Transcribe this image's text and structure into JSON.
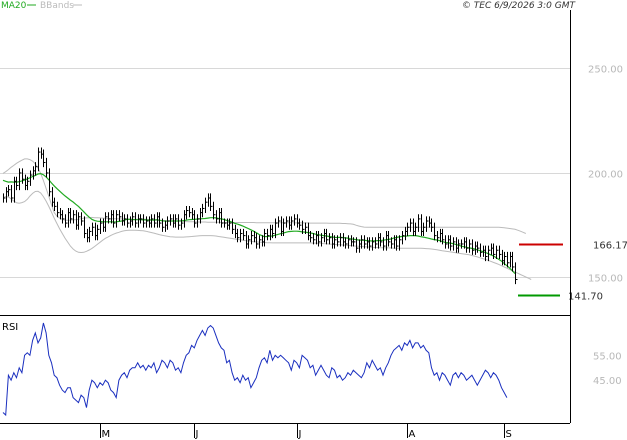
{
  "header": {
    "legend": [
      {
        "label": "MA20",
        "color": "#22aa22"
      },
      {
        "label": "BBands",
        "color": "#bbbbbb"
      }
    ],
    "copyright": "© TEC 6/9/2026 3:0 GMT"
  },
  "chart_data": [
    {
      "type": "line",
      "panel": "price",
      "y_ticks": [
        {
          "label": "250.00",
          "value": 250
        },
        {
          "label": "200.00",
          "value": 200
        },
        {
          "label": "150.00",
          "value": 150
        }
      ],
      "ylim": [
        132,
        278
      ],
      "x_ticks": [
        {
          "label": "M",
          "index": 36
        },
        {
          "label": "J",
          "index": 71
        },
        {
          "label": "J",
          "index": 109
        },
        {
          "label": "A",
          "index": 150
        },
        {
          "label": "S",
          "index": 186
        }
      ],
      "levels": [
        {
          "label": "166.17",
          "value": 166.17,
          "color": "#cc0000"
        },
        {
          "label": "141.70",
          "value": 141.7,
          "color": "#009900"
        }
      ],
      "series": {
        "close": [
          188,
          191,
          192,
          188,
          196,
          194,
          200,
          197,
          194,
          196,
          199,
          201,
          203,
          210,
          209,
          205,
          200,
          191,
          186,
          184,
          181,
          180,
          178,
          176,
          181,
          178,
          180,
          175,
          179,
          177,
          171,
          169,
          172,
          174,
          170,
          173,
          176,
          174,
          179,
          178,
          180,
          176,
          180,
          179,
          177,
          178,
          176,
          177,
          179,
          176,
          178,
          178,
          176,
          177,
          176,
          178,
          176,
          179,
          176,
          174,
          175,
          177,
          178,
          176,
          178,
          175,
          176,
          180,
          182,
          181,
          180,
          176,
          178,
          181,
          183,
          186,
          188,
          184,
          180,
          178,
          181,
          176,
          176,
          175,
          176,
          173,
          171,
          169,
          171,
          170,
          166,
          168,
          170,
          169,
          166,
          168,
          167,
          171,
          170,
          173,
          171,
          176,
          177,
          172,
          176,
          177,
          175,
          177,
          178,
          176,
          175,
          173,
          174,
          170,
          169,
          168,
          170,
          167,
          169,
          171,
          168,
          169,
          166,
          168,
          167,
          169,
          167,
          166,
          168,
          167,
          167,
          164,
          166,
          168,
          166,
          167,
          165,
          167,
          166,
          169,
          167,
          165,
          170,
          167,
          166,
          168,
          165,
          168,
          170,
          172,
          174,
          176,
          172,
          174,
          178,
          172,
          174,
          177,
          176,
          174,
          170,
          169,
          171,
          168,
          166,
          168,
          165,
          167,
          164,
          166,
          166,
          167,
          164,
          166,
          163,
          165,
          164,
          162,
          163,
          160,
          163,
          164,
          161,
          163,
          161,
          158,
          160,
          157,
          160,
          155,
          149
        ],
        "ma20": [
          196.5,
          196.0,
          195.6,
          195.7,
          195.6,
          195.6,
          195.8,
          196.2,
          196.6,
          197.1,
          197.7,
          198.3,
          198.8,
          199.5,
          199.7,
          199.1,
          198.1,
          196.7,
          195.2,
          193.8,
          192.5,
          191.3,
          190.1,
          189.0,
          188.0,
          187.0,
          186.1,
          185.0,
          184.0,
          182.7,
          181.4,
          180.0,
          178.8,
          177.8,
          177.2,
          176.9,
          176.8,
          176.6,
          176.6,
          176.6,
          176.6,
          176.5,
          176.6,
          176.8,
          177.0,
          177.4,
          177.8,
          177.8,
          177.7,
          177.6,
          177.6,
          177.6,
          177.5,
          177.5,
          177.4,
          177.5,
          177.4,
          177.6,
          177.4,
          177.1,
          177.0,
          176.9,
          177.0,
          177.0,
          177.0,
          177.0,
          177.1,
          177.2,
          177.4,
          177.6,
          177.7,
          177.8,
          177.9,
          178.0,
          178.1,
          178.2,
          178.4,
          178.6,
          178.6,
          178.5,
          178.2,
          178.0,
          177.7,
          177.3,
          176.9,
          176.4,
          175.9,
          175.5,
          175.1,
          174.6,
          174.0,
          173.4,
          172.8,
          172.1,
          171.4,
          170.6,
          170.0,
          169.5,
          169.6,
          169.7,
          169.8,
          170.2,
          170.6,
          170.9,
          171.2,
          171.6,
          171.9,
          172.0,
          172.1,
          172.1,
          172.0,
          171.8,
          171.7,
          171.5,
          171.3,
          171.0,
          170.7,
          170.4,
          170.2,
          170.0,
          169.8,
          169.6,
          169.4,
          169.2,
          169.1,
          169.2,
          169.1,
          168.9,
          168.8,
          168.5,
          168.3,
          168.1,
          167.9,
          167.8,
          167.8,
          167.6,
          167.5,
          167.4,
          167.5,
          167.6,
          167.6,
          167.8,
          168.0,
          168.2,
          168.4,
          168.8,
          169.1,
          169.4,
          169.6,
          169.7,
          169.8,
          170.0,
          170.0,
          170.0,
          169.8,
          169.5,
          169.3,
          169.0,
          168.7,
          168.4,
          168.1,
          167.9,
          167.6,
          167.2,
          166.8,
          166.6,
          166.4,
          166.2,
          165.8,
          165.4,
          165.0,
          164.7,
          164.4,
          164.1,
          163.9,
          163.6,
          163.2,
          162.8,
          162.4,
          161.9,
          161.4,
          160.8,
          160.3,
          159.5,
          158.6,
          157.8,
          156.6,
          155.6,
          154.5,
          153.2,
          151.8
        ],
        "bb_upper": [
          199.8,
          200.6,
          201.6,
          202.7,
          203.6,
          204.6,
          205.4,
          206.1,
          206.7,
          206.7,
          206.4,
          205.6,
          204.4,
          202.4,
          199.8,
          196.4,
          192.6,
          188.8,
          184.8,
          181.0,
          179.4,
          178.4,
          177.8,
          177.4,
          177.4,
          177.4,
          177.6,
          177.6,
          177.8,
          178.1,
          178.4,
          178.5,
          178.6,
          178.7,
          178.6,
          178.6,
          178.5,
          178.4,
          178.3,
          178.1,
          178.1,
          178.1,
          178.1,
          178.0,
          178.0,
          178.0,
          177.9,
          177.9,
          177.8,
          177.8,
          177.8,
          177.8,
          177.8,
          177.8,
          177.7,
          177.6,
          177.5,
          177.4,
          177.3,
          177.3,
          177.2,
          177.1,
          177.1,
          177.0,
          177.0,
          177.0,
          176.9,
          176.8,
          176.7,
          176.6,
          176.6,
          176.6,
          176.5,
          176.5,
          176.5,
          176.5,
          176.4,
          176.4,
          176.4,
          176.4,
          176.4,
          176.3,
          176.3,
          176.3,
          176.3,
          176.3,
          176.3,
          176.3,
          176.3,
          176.3,
          176.3,
          176.3,
          176.3,
          176.3,
          176.2,
          176.2,
          176.2,
          176.2,
          176.2,
          176.2,
          176.2,
          176.2,
          176.2,
          176.2,
          176.2,
          176.2,
          176.2,
          176.2,
          176.1,
          176.1,
          176.1,
          176.1,
          176.1,
          176.1,
          176.0,
          176.0,
          176.0,
          176.0,
          176.0,
          176.0,
          176.0,
          175.9,
          175.9,
          175.9,
          175.9,
          175.9,
          175.8,
          175.8,
          175.7,
          175.6,
          175.4,
          175.0,
          174.6,
          174.3,
          174.1,
          174.0,
          174.0,
          174.0,
          174.0,
          174.0,
          174.0,
          174.0,
          174.0,
          174.0,
          174.0,
          174.0,
          174.0,
          174.0,
          174.0,
          174.0,
          174.0,
          174.0,
          174.0,
          174.0,
          174.0,
          174.0,
          174.0,
          174.0,
          174.0,
          174.0,
          174.0,
          174.0,
          174.0,
          174.0,
          174.0,
          174.0,
          174.0,
          174.0,
          174.0,
          174.0,
          174.0,
          174.0,
          174.0,
          174.0,
          174.0,
          174.0,
          174.0,
          174.0,
          174.0,
          174.0,
          174.0,
          174.0,
          174.0,
          174.0,
          174.0,
          173.9,
          173.8,
          173.6,
          173.4,
          173.2,
          173.0,
          172.6,
          172.1,
          171.6,
          171.0
        ],
        "bb_lower": [
          188.4,
          188.7,
          188.5,
          187.6,
          186.5,
          185.7,
          185.5,
          185.8,
          186.3,
          187.4,
          188.9,
          190.2,
          191.1,
          191.2,
          190.4,
          188.7,
          186.5,
          184.0,
          181.2,
          178.4,
          175.8,
          173.3,
          171.0,
          168.8,
          166.9,
          165.0,
          163.6,
          162.6,
          162.0,
          161.9,
          162.0,
          162.5,
          163.1,
          163.9,
          164.8,
          165.8,
          166.8,
          167.8,
          168.7,
          169.4,
          170.1,
          170.7,
          171.2,
          171.6,
          172.0,
          172.3,
          172.5,
          172.6,
          172.6,
          172.6,
          172.5,
          172.4,
          172.3,
          172.1,
          171.8,
          171.5,
          171.2,
          170.8,
          170.5,
          170.2,
          169.9,
          169.7,
          169.5,
          169.4,
          169.3,
          169.3,
          169.3,
          169.3,
          169.4,
          169.5,
          169.6,
          169.7,
          169.8,
          169.9,
          170.0,
          170.0,
          170.0,
          170.0,
          169.9,
          169.8,
          169.6,
          169.4,
          169.2,
          169.0,
          168.8,
          168.6,
          168.4,
          168.2,
          168.0,
          167.8,
          167.6,
          167.4,
          167.3,
          167.1,
          167.0,
          166.9,
          166.8,
          166.7,
          166.6,
          166.6,
          166.5,
          166.5,
          166.5,
          166.5,
          166.5,
          166.5,
          166.5,
          166.5,
          166.5,
          166.5,
          166.5,
          166.5,
          166.5,
          166.5,
          166.5,
          166.4,
          166.4,
          166.3,
          166.3,
          166.2,
          166.1,
          166.0,
          165.9,
          165.8,
          165.7,
          165.6,
          165.5,
          165.4,
          165.3,
          165.2,
          165.1,
          165.0,
          164.9,
          164.8,
          164.7,
          164.6,
          164.5,
          164.4,
          164.3,
          164.3,
          164.2,
          164.2,
          164.1,
          164.1,
          164.1,
          164.0,
          164.0,
          164.0,
          164.0,
          164.0,
          164.0,
          164.0,
          164.0,
          164.0,
          164.0,
          164.0,
          163.9,
          163.8,
          163.7,
          163.6,
          163.4,
          163.2,
          163.0,
          162.8,
          162.6,
          162.4,
          162.2,
          162.0,
          161.8,
          161.6,
          161.4,
          161.2,
          161.0,
          160.8,
          160.5,
          160.2,
          159.8,
          159.4,
          159.0,
          158.6,
          158.2,
          157.7,
          157.2,
          156.7,
          156.2,
          155.6,
          155.0,
          154.4,
          153.8,
          153.2,
          152.6,
          152.0,
          151.4,
          150.8,
          150.2,
          149.6,
          149.0
        ]
      }
    },
    {
      "type": "line",
      "panel": "rsi",
      "title": "RSI",
      "y_ticks": [
        {
          "label": "55.00",
          "value": 55
        },
        {
          "label": "45.00",
          "value": 45
        }
      ],
      "ylim": [
        29,
        70
      ],
      "series": {
        "rsi": [
          32,
          31,
          47,
          45,
          48,
          46,
          50,
          48,
          55,
          56,
          55,
          61,
          64,
          60,
          62,
          68,
          64,
          55,
          52,
          47,
          46,
          43,
          41,
          40,
          42,
          42,
          38,
          37,
          36,
          39,
          38,
          34,
          41,
          45,
          44,
          42,
          44,
          43,
          45,
          44,
          41,
          40,
          38,
          45,
          47,
          48,
          46,
          49,
          50,
          50,
          52,
          50,
          51,
          49,
          51,
          50,
          52,
          48,
          50,
          53,
          52,
          50,
          53,
          52,
          49,
          50,
          48,
          52,
          55,
          56,
          59,
          58,
          61,
          63,
          65,
          63,
          66,
          67,
          66,
          63,
          60,
          58,
          57,
          52,
          53,
          48,
          45,
          46,
          44,
          47,
          45,
          46,
          42,
          44,
          46,
          50,
          53,
          54,
          52,
          57,
          53,
          55,
          54,
          55,
          54,
          53,
          52,
          49,
          53,
          52,
          50,
          55,
          54,
          53,
          50,
          51,
          47,
          49,
          51,
          49,
          47,
          46,
          50,
          49,
          46,
          47,
          45,
          46,
          48,
          47,
          49,
          48,
          47,
          46,
          48,
          52,
          50,
          53,
          51,
          49,
          50,
          47,
          50,
          52,
          55,
          57,
          58,
          59,
          57,
          60,
          59,
          61,
          58,
          60,
          60,
          58,
          59,
          57,
          56,
          50,
          47,
          48,
          45,
          48,
          47,
          45,
          43,
          47,
          48,
          46,
          48,
          47,
          45,
          46,
          47,
          45,
          43,
          45,
          47,
          49,
          48,
          46,
          48,
          47,
          45,
          42,
          40,
          38
        ]
      }
    }
  ]
}
